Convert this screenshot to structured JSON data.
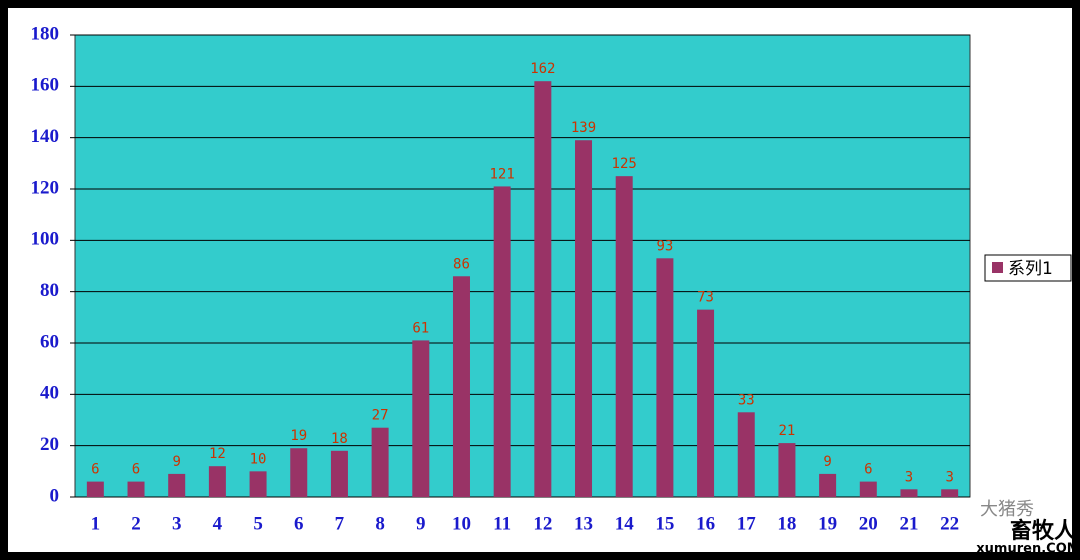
{
  "chart_data": {
    "type": "bar",
    "categories": [
      "1",
      "2",
      "3",
      "4",
      "5",
      "6",
      "7",
      "8",
      "9",
      "10",
      "11",
      "12",
      "13",
      "14",
      "15",
      "16",
      "17",
      "18",
      "19",
      "20",
      "21",
      "22"
    ],
    "series": [
      {
        "name": "系列1",
        "color": "#993366",
        "values": [
          6,
          6,
          9,
          12,
          10,
          19,
          18,
          27,
          61,
          86,
          121,
          162,
          139,
          125,
          93,
          73,
          33,
          21,
          9,
          6,
          3,
          3
        ]
      }
    ],
    "ylim": [
      0,
      180
    ],
    "yticks": [
      0,
      20,
      40,
      60,
      80,
      100,
      120,
      140,
      160,
      180
    ],
    "grid": true,
    "plot_background": "#33CCCC",
    "legend": "right",
    "annotations": [
      "大猪秀",
      "畜牧人",
      "xumuren.COM"
    ]
  }
}
